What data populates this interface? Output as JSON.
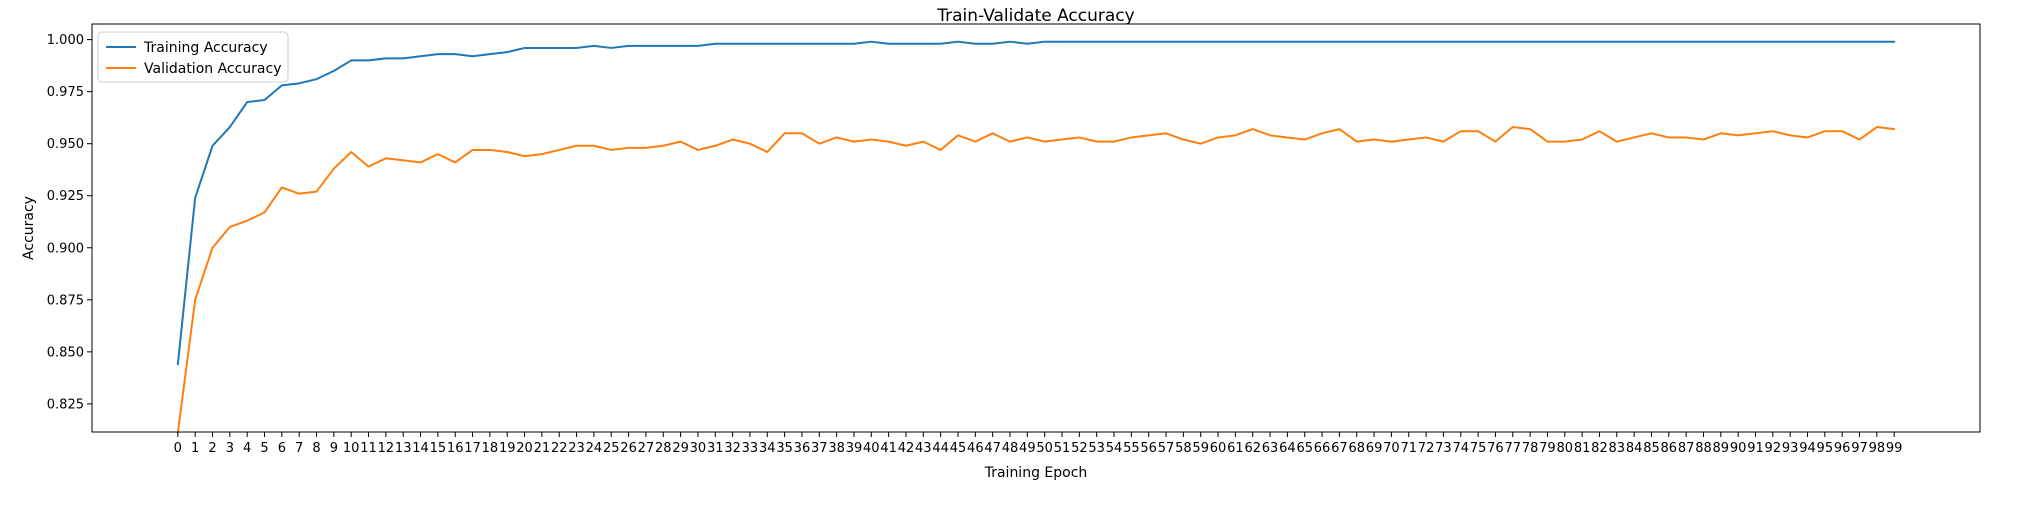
{
  "chart_data": {
    "type": "line",
    "title": "Train-Validate Accuracy",
    "xlabel": "Training Epoch",
    "ylabel": "Accuracy",
    "x": [
      0,
      1,
      2,
      3,
      4,
      5,
      6,
      7,
      8,
      9,
      10,
      11,
      12,
      13,
      14,
      15,
      16,
      17,
      18,
      19,
      20,
      21,
      22,
      23,
      24,
      25,
      26,
      27,
      28,
      29,
      30,
      31,
      32,
      33,
      34,
      35,
      36,
      37,
      38,
      39,
      40,
      41,
      42,
      43,
      44,
      45,
      46,
      47,
      48,
      49,
      50,
      51,
      52,
      53,
      54,
      55,
      56,
      57,
      58,
      59,
      60,
      61,
      62,
      63,
      64,
      65,
      66,
      67,
      68,
      69,
      70,
      71,
      72,
      73,
      74,
      75,
      76,
      77,
      78,
      79,
      80,
      81,
      82,
      83,
      84,
      85,
      86,
      87,
      88,
      89,
      90,
      91,
      92,
      93,
      94,
      95,
      96,
      97,
      98,
      99
    ],
    "xlim": [
      -4.95,
      103.95
    ],
    "ylim": [
      0.8115,
      1.0075
    ],
    "yticks": [
      0.825,
      0.85,
      0.875,
      0.9,
      0.925,
      0.95,
      0.975,
      1.0
    ],
    "ytick_labels": [
      "0.825",
      "0.850",
      "0.875",
      "0.900",
      "0.925",
      "0.950",
      "0.975",
      "1.000"
    ],
    "grid": false,
    "legend_position": "top-left",
    "series": [
      {
        "name": "Training Accuracy",
        "color": "#1f77b4",
        "values": [
          0.844,
          0.924,
          0.949,
          0.958,
          0.97,
          0.971,
          0.978,
          0.979,
          0.981,
          0.985,
          0.99,
          0.99,
          0.991,
          0.991,
          0.992,
          0.993,
          0.993,
          0.992,
          0.993,
          0.994,
          0.996,
          0.996,
          0.996,
          0.996,
          0.997,
          0.996,
          0.997,
          0.997,
          0.997,
          0.997,
          0.997,
          0.998,
          0.998,
          0.998,
          0.998,
          0.998,
          0.998,
          0.998,
          0.998,
          0.998,
          0.999,
          0.998,
          0.998,
          0.998,
          0.998,
          0.999,
          0.998,
          0.998,
          0.999,
          0.998,
          0.999,
          0.999,
          0.999,
          0.999,
          0.999,
          0.999,
          0.999,
          0.999,
          0.999,
          0.999,
          0.999,
          0.999,
          0.999,
          0.999,
          0.999,
          0.999,
          0.999,
          0.999,
          0.999,
          0.999,
          0.999,
          0.999,
          0.999,
          0.999,
          0.999,
          0.999,
          0.999,
          0.999,
          0.999,
          0.999,
          0.999,
          0.999,
          0.999,
          0.999,
          0.999,
          0.999,
          0.999,
          0.999,
          0.999,
          0.999,
          0.999,
          0.999,
          0.999,
          0.999,
          0.999,
          0.999,
          0.999,
          0.999,
          0.999,
          0.999
        ]
      },
      {
        "name": "Validation Accuracy",
        "color": "#ff7f0e",
        "values": [
          0.811,
          0.875,
          0.9,
          0.91,
          0.913,
          0.917,
          0.929,
          0.926,
          0.927,
          0.938,
          0.946,
          0.939,
          0.943,
          0.942,
          0.941,
          0.945,
          0.941,
          0.947,
          0.947,
          0.946,
          0.944,
          0.945,
          0.947,
          0.949,
          0.949,
          0.947,
          0.948,
          0.948,
          0.949,
          0.951,
          0.947,
          0.949,
          0.952,
          0.95,
          0.946,
          0.955,
          0.955,
          0.95,
          0.953,
          0.951,
          0.952,
          0.951,
          0.949,
          0.951,
          0.947,
          0.954,
          0.951,
          0.955,
          0.951,
          0.953,
          0.951,
          0.952,
          0.953,
          0.951,
          0.951,
          0.953,
          0.954,
          0.955,
          0.952,
          0.95,
          0.953,
          0.954,
          0.957,
          0.954,
          0.953,
          0.952,
          0.955,
          0.957,
          0.951,
          0.952,
          0.951,
          0.952,
          0.953,
          0.951,
          0.956,
          0.956,
          0.951,
          0.958,
          0.957,
          0.951,
          0.951,
          0.952,
          0.956,
          0.951,
          0.953,
          0.955,
          0.953,
          0.953,
          0.952,
          0.955,
          0.954,
          0.955,
          0.956,
          0.954,
          0.953,
          0.956,
          0.956,
          0.952,
          0.958,
          0.957
        ]
      }
    ]
  }
}
